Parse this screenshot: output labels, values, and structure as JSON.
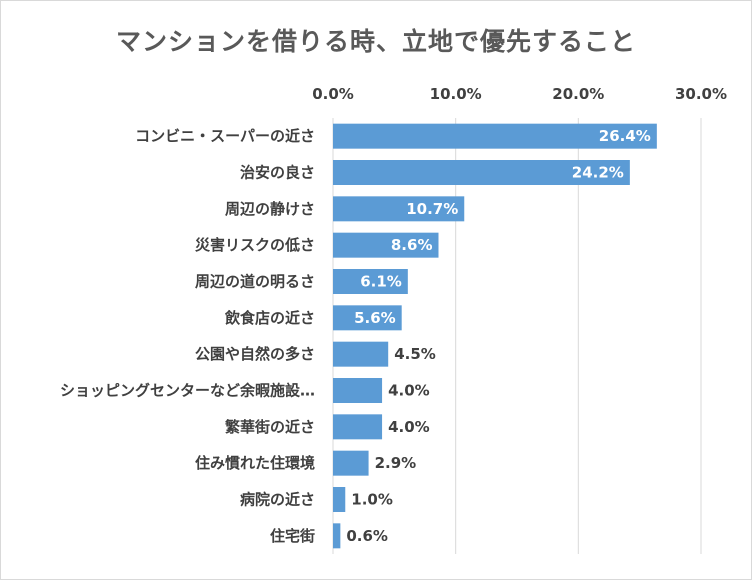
{
  "chart_data": {
    "type": "bar",
    "orientation": "horizontal",
    "title": "マンションを借りる時、立地で優先すること",
    "categories": [
      "コンビニ・スーパーの近さ",
      "治安の良さ",
      "周辺の静けさ",
      "災害リスクの低さ",
      "周辺の道の明るさ",
      "飲食店の近さ",
      "公園や自然の多さ",
      "ショッピングセンターなど余暇施設…",
      "繁華街の近さ",
      "住み慣れた住環境",
      "病院の近さ",
      "住宅街"
    ],
    "values": [
      26.4,
      24.2,
      10.7,
      8.6,
      6.1,
      5.6,
      4.5,
      4.0,
      4.0,
      2.9,
      1.0,
      0.6
    ],
    "data_labels": [
      "26.4%",
      "24.2%",
      "10.7%",
      "8.6%",
      "6.1%",
      "5.6%",
      "4.5%",
      "4.0%",
      "4.0%",
      "2.9%",
      "1.0%",
      "0.6%"
    ],
    "xaxis": {
      "position": "top",
      "ticks": [
        0,
        10,
        20,
        30
      ],
      "tick_labels": [
        "0.0%",
        "10.0%",
        "20.0%",
        "30.0%"
      ],
      "xlim": [
        0,
        30
      ]
    },
    "grid": true,
    "legend": "none",
    "colors": {
      "bar": "#5b9bd5",
      "label_inside": "#ffffff",
      "label_outside": "#404040",
      "grid": "#d9d9d9",
      "title": "#595959"
    }
  }
}
